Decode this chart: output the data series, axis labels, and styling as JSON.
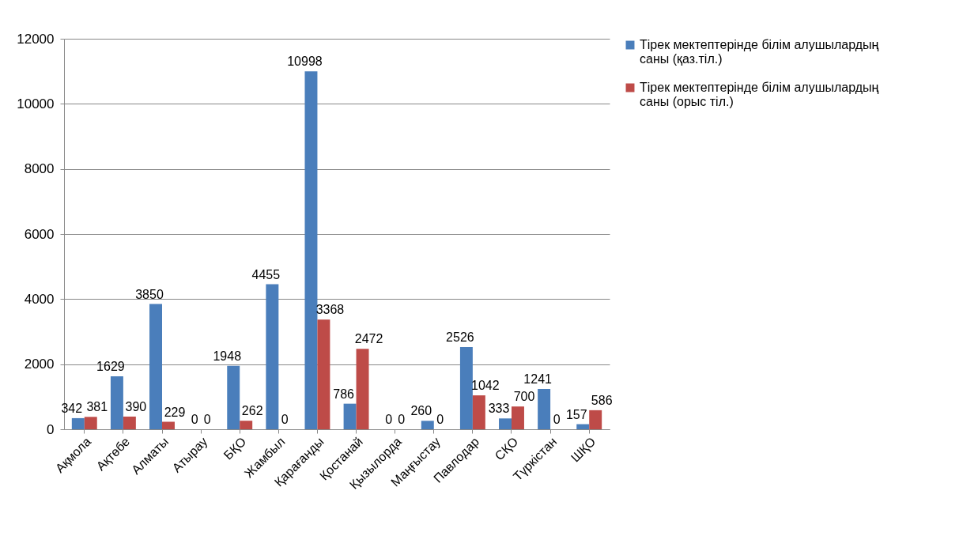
{
  "chart_data": {
    "type": "bar",
    "categories": [
      "Ақмола",
      "Ақтөбе",
      "Алматы",
      "Атырау",
      "БҚО",
      "Жамбыл",
      "Қарағанды",
      "Қостанай",
      "Қызылорда",
      "Маңғыстау",
      "Павлодар",
      "СҚО",
      "Түркістан",
      "ШҚО"
    ],
    "series": [
      {
        "name": "Тірек мектептерінде білім алушылардың саны (қаз.тіл.)",
        "color": "#4a7ebb",
        "values": [
          342,
          1629,
          3850,
          0,
          1948,
          4455,
          10998,
          786,
          0,
          260,
          2526,
          333,
          1241,
          157
        ]
      },
      {
        "name": "Тірек мектептерінде білім алушылардың саны (орыс тіл.)",
        "color": "#be4b48",
        "values": [
          381,
          390,
          229,
          0,
          262,
          0,
          3368,
          2472,
          0,
          0,
          1042,
          700,
          0,
          586
        ]
      }
    ],
    "ylim": [
      0,
      12000
    ],
    "yticks": [
      0,
      2000,
      4000,
      6000,
      8000,
      10000,
      12000
    ],
    "grid": "y",
    "legend": "right",
    "data_labels": true
  }
}
